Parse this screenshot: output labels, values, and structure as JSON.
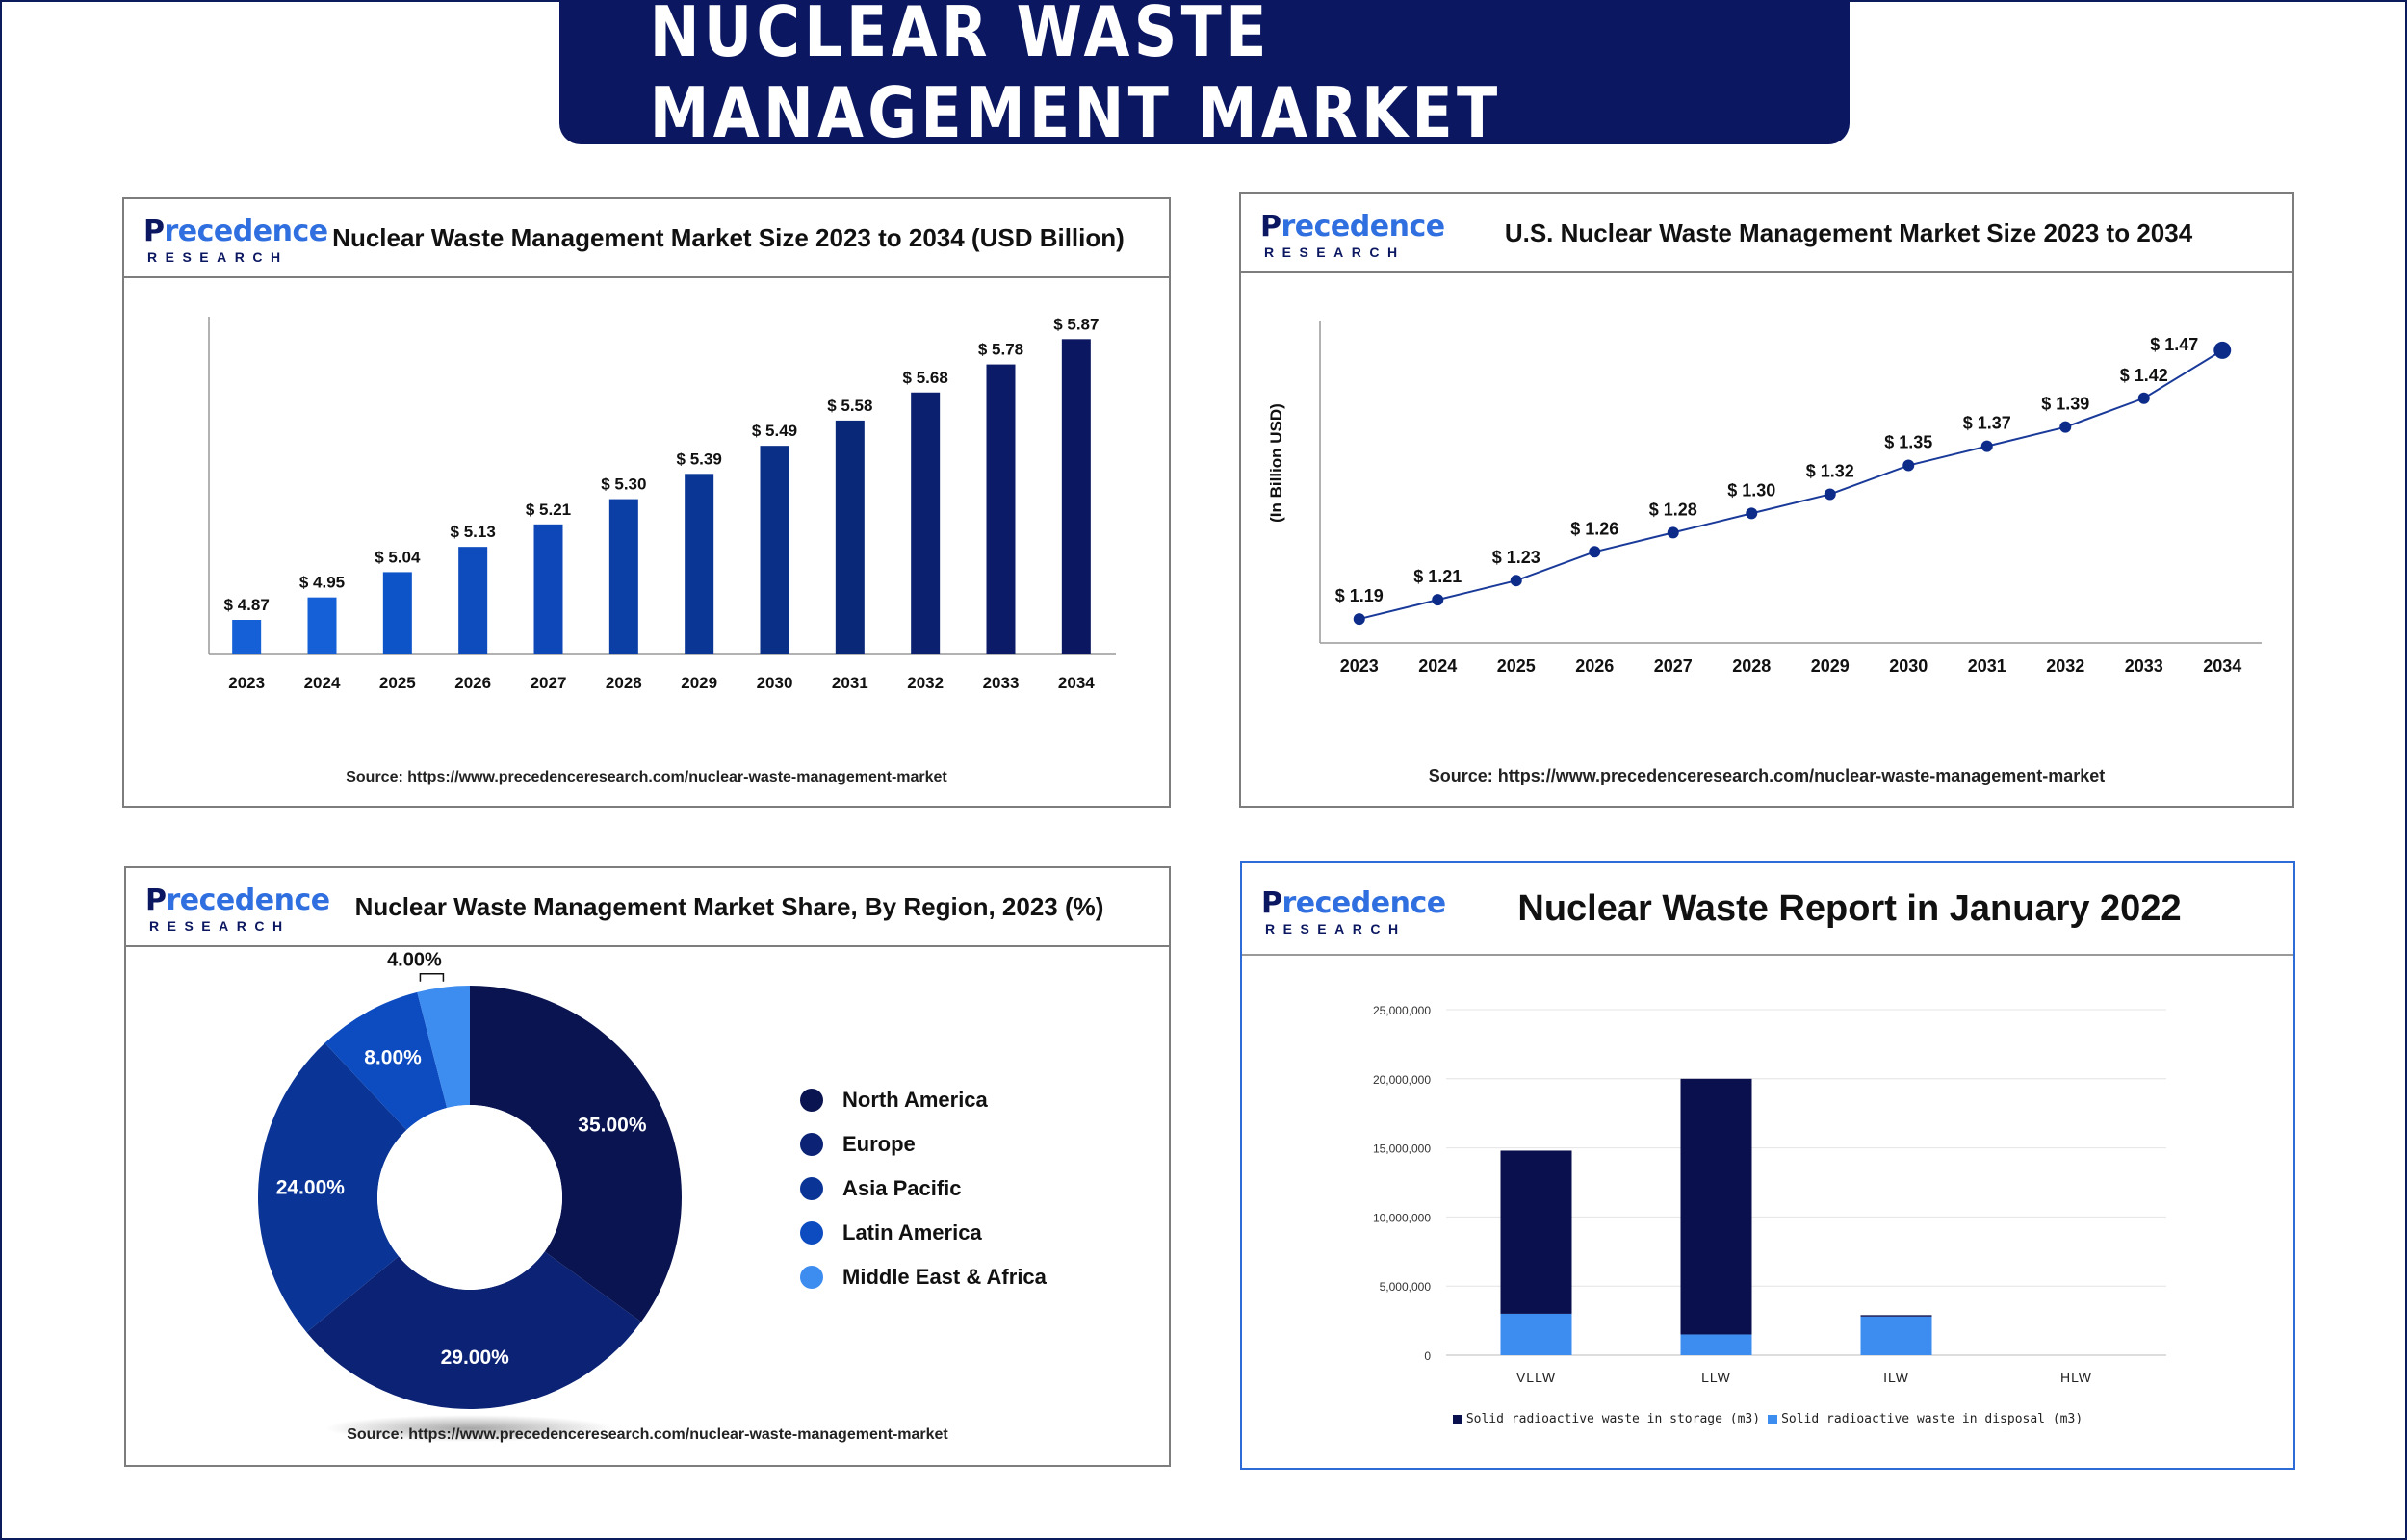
{
  "page": {
    "title": "NUCLEAR WASTE MANAGEMENT MARKET"
  },
  "logo": {
    "main_pre": "P",
    "main_mid": "recedence",
    "sub": "RESEARCH"
  },
  "colors": {
    "navy": "#0b1761",
    "blue_dark": "#0a2f8f",
    "blue_mid": "#0d47b8",
    "blue_light": "#3d8cf0"
  },
  "panels": {
    "global_size": {
      "title": "Nuclear Waste Management Market Size 2023 to 2034 (USD Billion)",
      "source": "Source: https://www.precedenceresearch.com/nuclear-waste-management-market"
    },
    "us_size": {
      "title": "U.S. Nuclear Waste Management Market Size 2023 to 2034",
      "source": "Source: https://www.precedenceresearch.com/nuclear-waste-management-market"
    },
    "region_share": {
      "title": "Nuclear Waste Management Market Share, By Region, 2023 (%)",
      "source": "Source: https://www.precedenceresearch.com/nuclear-waste-management-market"
    },
    "waste_report": {
      "title": "Nuclear Waste Report in January 2022"
    }
  },
  "chart_data": [
    {
      "type": "bar",
      "title": "Nuclear Waste Management Market Size 2023 to 2034 (USD Billion)",
      "categories": [
        "2023",
        "2024",
        "2025",
        "2026",
        "2027",
        "2028",
        "2029",
        "2030",
        "2031",
        "2032",
        "2033",
        "2034"
      ],
      "values": [
        4.87,
        4.95,
        5.04,
        5.13,
        5.21,
        5.3,
        5.39,
        5.49,
        5.58,
        5.68,
        5.78,
        5.87
      ],
      "labels": [
        "$ 4.87",
        "$ 4.95",
        "$ 5.04",
        "$ 5.13",
        "$ 5.21",
        "$ 5.30",
        "$ 5.39",
        "$ 5.49",
        "$ 5.58",
        "$ 5.68",
        "$ 5.78",
        "$ 5.87"
      ],
      "colors": [
        "#1560d6",
        "#1560d6",
        "#0e54c9",
        "#0e4cbd",
        "#0d47b8",
        "#0b3fa6",
        "#0a3796",
        "#0a2f86",
        "#0a2878",
        "#0b2170",
        "#0b1b68",
        "#0b1761"
      ],
      "ylim": [
        4.75,
        5.95
      ],
      "grid": false
    },
    {
      "type": "line",
      "title": "U.S. Nuclear Waste Management Market Size 2023 to 2034",
      "ylabel": "(In Billion USD)",
      "x": [
        "2023",
        "2024",
        "2025",
        "2026",
        "2027",
        "2028",
        "2029",
        "2030",
        "2031",
        "2032",
        "2033",
        "2034"
      ],
      "values": [
        1.19,
        1.21,
        1.23,
        1.26,
        1.28,
        1.3,
        1.32,
        1.35,
        1.37,
        1.39,
        1.42,
        1.47
      ],
      "labels": [
        "$ 1.19",
        "$ 1.21",
        "$ 1.23",
        "$ 1.26",
        "$ 1.28",
        "$ 1.30",
        "$ 1.32",
        "$ 1.35",
        "$ 1.37",
        "$ 1.39",
        "$ 1.42",
        "$ 1.47"
      ],
      "ylim": [
        1.165,
        1.5
      ],
      "grid": false
    },
    {
      "type": "pie",
      "title": "Nuclear Waste Management Market Share, By Region, 2023 (%)",
      "slices": [
        {
          "name": "North America",
          "value": 35.0,
          "label": "35.00%",
          "color": "#0a1450"
        },
        {
          "name": "Europe",
          "value": 29.0,
          "label": "29.00%",
          "color": "#0b2275"
        },
        {
          "name": "Asia Pacific",
          "value": 24.0,
          "label": "24.00%",
          "color": "#0a3596"
        },
        {
          "name": "Latin America",
          "value": 8.0,
          "label": "8.00%",
          "color": "#0d4cc0"
        },
        {
          "name": "Middle East & Africa",
          "value": 4.0,
          "label": "4.00%",
          "color": "#3d8cf0"
        }
      ],
      "donut": true
    },
    {
      "type": "bar",
      "stacked": true,
      "title": "Nuclear Waste Report in January 2022",
      "categories": [
        "VLLW",
        "LLW",
        "ILW",
        "HLW"
      ],
      "series": [
        {
          "name": "Solid radioactive waste in disposal (m3)",
          "values": [
            3000000,
            1500000,
            2800000,
            0
          ],
          "color": "#3d8cf0"
        },
        {
          "name": "Solid radioactive waste in storage (m3)",
          "values": [
            11800000,
            18500000,
            100000,
            0
          ],
          "color": "#0a0f4e"
        }
      ],
      "ylim": [
        0,
        25000000
      ],
      "yticks": [
        "0",
        "5,000,000",
        "10,000,000",
        "15,000,000",
        "20,000,000",
        "25,000,000"
      ],
      "grid": true,
      "legend": "bottom"
    }
  ]
}
